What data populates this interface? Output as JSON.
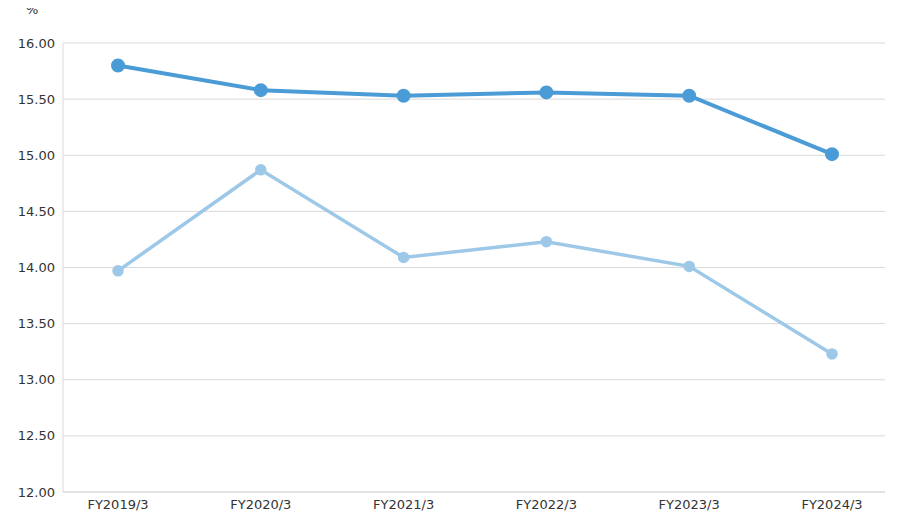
{
  "chart_data": {
    "type": "line",
    "y_label": "%",
    "categories": [
      "FY2019/3",
      "FY2020/3",
      "FY2021/3",
      "FY2022/3",
      "FY2023/3",
      "FY2024/3"
    ],
    "series": [
      {
        "color": "#4a9bd6",
        "values": [
          15.8,
          15.58,
          15.53,
          15.56,
          15.53,
          15.01
        ]
      },
      {
        "color": "#9dc8e8",
        "values": [
          13.97,
          14.87,
          14.09,
          14.23,
          14.01,
          13.23
        ]
      }
    ],
    "ylim": [
      12,
      16
    ],
    "yticks": [
      {
        "value": 12,
        "label": "12.00"
      },
      {
        "value": 12.5,
        "label": "12.50"
      },
      {
        "value": 13,
        "label": "13.00"
      },
      {
        "value": 13.5,
        "label": "13.50"
      },
      {
        "value": 14,
        "label": "14.00"
      },
      {
        "value": 14.5,
        "label": "14.50"
      },
      {
        "value": 15,
        "label": "15.00"
      },
      {
        "value": 15.5,
        "label": "15.50"
      },
      {
        "value": 16,
        "label": "16.00"
      }
    ],
    "grid": true
  }
}
